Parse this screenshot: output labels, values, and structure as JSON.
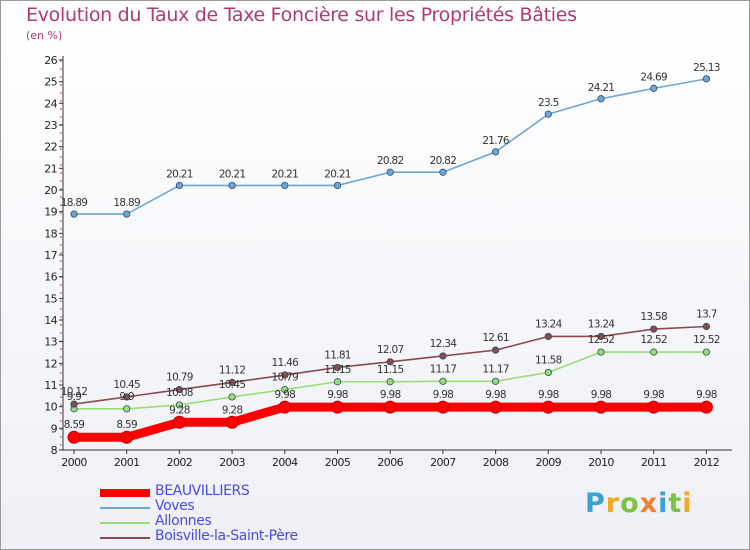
{
  "header": {
    "title": "Evolution du Taux de Taxe Foncière sur les Propriétés Bâties",
    "unit": "(en %)"
  },
  "brand": {
    "logo_text": "Proxiti"
  },
  "chart_data": {
    "type": "line",
    "x": [
      "2000",
      "2001",
      "2002",
      "2003",
      "2004",
      "2005",
      "2006",
      "2007",
      "2008",
      "2009",
      "2010",
      "2011",
      "2012"
    ],
    "ylim": [
      8,
      26
    ],
    "yticks": [
      8,
      9,
      10,
      11,
      12,
      13,
      14,
      15,
      16,
      17,
      18,
      19,
      20,
      21,
      22,
      23,
      24,
      25,
      26
    ],
    "grid": false,
    "legend_position": "bottom-left",
    "series": [
      {
        "name": "BEAUVILLIERS",
        "color": "#ff0000",
        "values": [
          8.59,
          8.59,
          9.28,
          9.28,
          9.98,
          9.98,
          9.98,
          9.98,
          9.98,
          9.98,
          9.98,
          9.98,
          9.98
        ],
        "labels": [
          "8.59",
          "8.59",
          "9.28",
          "9.28",
          "9.98",
          "9.98",
          "9.98",
          "9.98",
          "9.98",
          "9.98",
          "9.98",
          "9.98",
          "9.98"
        ]
      },
      {
        "name": "Voves",
        "color": "#6ea6d6",
        "values": [
          18.89,
          18.89,
          20.21,
          20.21,
          20.21,
          20.21,
          20.82,
          20.82,
          21.76,
          23.5,
          24.21,
          24.69,
          25.13
        ],
        "labels": [
          "18.89",
          "18.89",
          "20.21",
          "20.21",
          "20.21",
          "20.21",
          "20.82",
          "20.82",
          "21.76",
          "23.5",
          "24.21",
          "24.69",
          "25.13"
        ]
      },
      {
        "name": "Allonnes",
        "color": "#99dd77",
        "values": [
          9.9,
          9.9,
          10.08,
          10.45,
          10.79,
          11.15,
          11.15,
          11.17,
          11.17,
          11.58,
          12.52,
          12.52,
          12.52
        ],
        "labels": [
          "9.9",
          "9.9",
          "10.08",
          "10.45",
          "10.79",
          "11.15",
          "11.15",
          "11.17",
          "11.17",
          "11.58",
          "12.52",
          "12.52",
          "12.52"
        ]
      },
      {
        "name": "Boisville-la-Saint-Père",
        "color": "#8b4b4b",
        "values": [
          10.12,
          10.45,
          10.79,
          11.12,
          11.46,
          11.81,
          12.07,
          12.34,
          12.61,
          13.24,
          13.24,
          13.58,
          13.7
        ],
        "labels": [
          "10.12",
          "10.45",
          "10.79",
          "11.12",
          "11.46",
          "11.81",
          "12.07",
          "12.34",
          "12.61",
          "13.24",
          "13.24",
          "13.58",
          "13.7"
        ]
      }
    ]
  }
}
